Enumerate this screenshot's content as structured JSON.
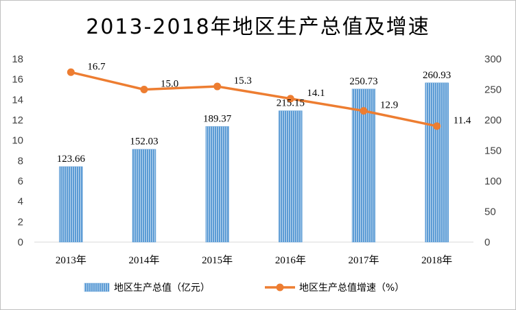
{
  "chart_data": {
    "type": "bar",
    "title": "2013-2018年地区生产总值及增速",
    "categories": [
      "2013年",
      "2014年",
      "2015年",
      "2016年",
      "2017年",
      "2018年"
    ],
    "series": [
      {
        "name": "地区生产总值（亿元）",
        "type": "bar",
        "axis": "right",
        "values": [
          123.66,
          152.03,
          189.37,
          215.15,
          250.73,
          260.93
        ],
        "labels": [
          "123.66",
          "152.03",
          "189.37",
          "215.15",
          "250.73",
          "260.93"
        ],
        "color": "#5b9bd5"
      },
      {
        "name": "地区生产总值增速（%）",
        "type": "line",
        "axis": "left",
        "values": [
          16.7,
          15.0,
          15.3,
          14.1,
          12.9,
          11.4
        ],
        "labels": [
          "16.7",
          "15.0",
          "15.3",
          "14.1",
          "12.9",
          "11.4"
        ],
        "color": "#ed7d31"
      }
    ],
    "y_left": {
      "min": 0,
      "max": 18,
      "step": 2
    },
    "y_right": {
      "min": 0,
      "max": 300,
      "step": 50
    },
    "grid": false,
    "legend_position": "bottom"
  }
}
